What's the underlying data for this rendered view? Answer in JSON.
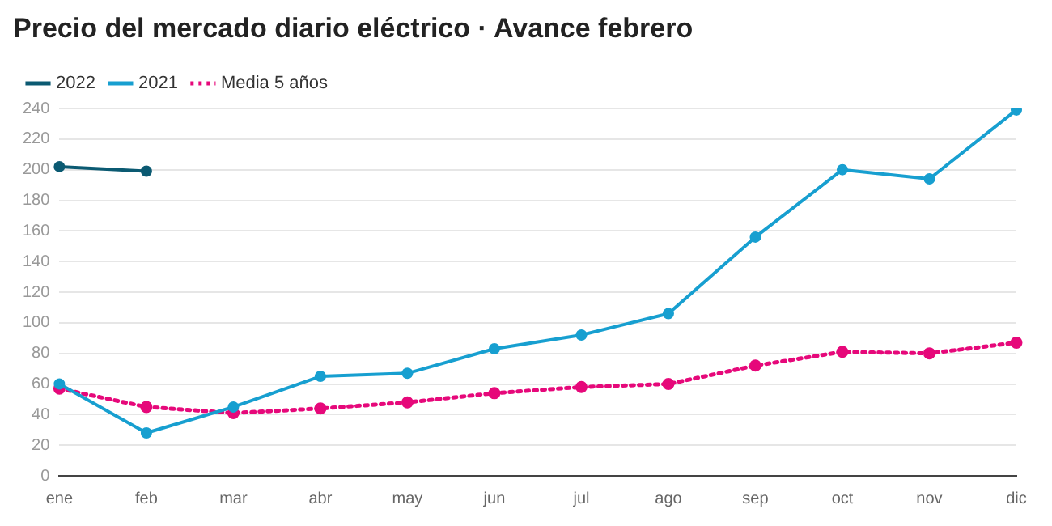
{
  "chart_data": {
    "type": "line",
    "title": "Precio del mercado diario eléctrico · Avance febrero",
    "categories": [
      "ene",
      "feb",
      "mar",
      "abr",
      "may",
      "jun",
      "jul",
      "ago",
      "sep",
      "oct",
      "nov",
      "dic"
    ],
    "series": [
      {
        "name": "2022",
        "color": "#0b5a72",
        "line_style": "solid",
        "values": [
          202,
          199,
          null,
          null,
          null,
          null,
          null,
          null,
          null,
          null,
          null,
          null
        ]
      },
      {
        "name": "2021",
        "color": "#179fd0",
        "line_style": "solid",
        "values": [
          60,
          28,
          45,
          65,
          67,
          83,
          92,
          106,
          156,
          200,
          194,
          239
        ]
      },
      {
        "name": "Media 5 años",
        "color": "#e6087a",
        "line_style": "dotted",
        "values": [
          57,
          45,
          41,
          44,
          48,
          54,
          58,
          60,
          72,
          81,
          80,
          87
        ]
      }
    ],
    "ylim": [
      0,
      240
    ],
    "yticks": [
      0,
      20,
      40,
      60,
      80,
      100,
      120,
      140,
      160,
      180,
      200,
      220,
      240
    ],
    "grid": "y",
    "legend": "top left",
    "marker": "circle"
  }
}
